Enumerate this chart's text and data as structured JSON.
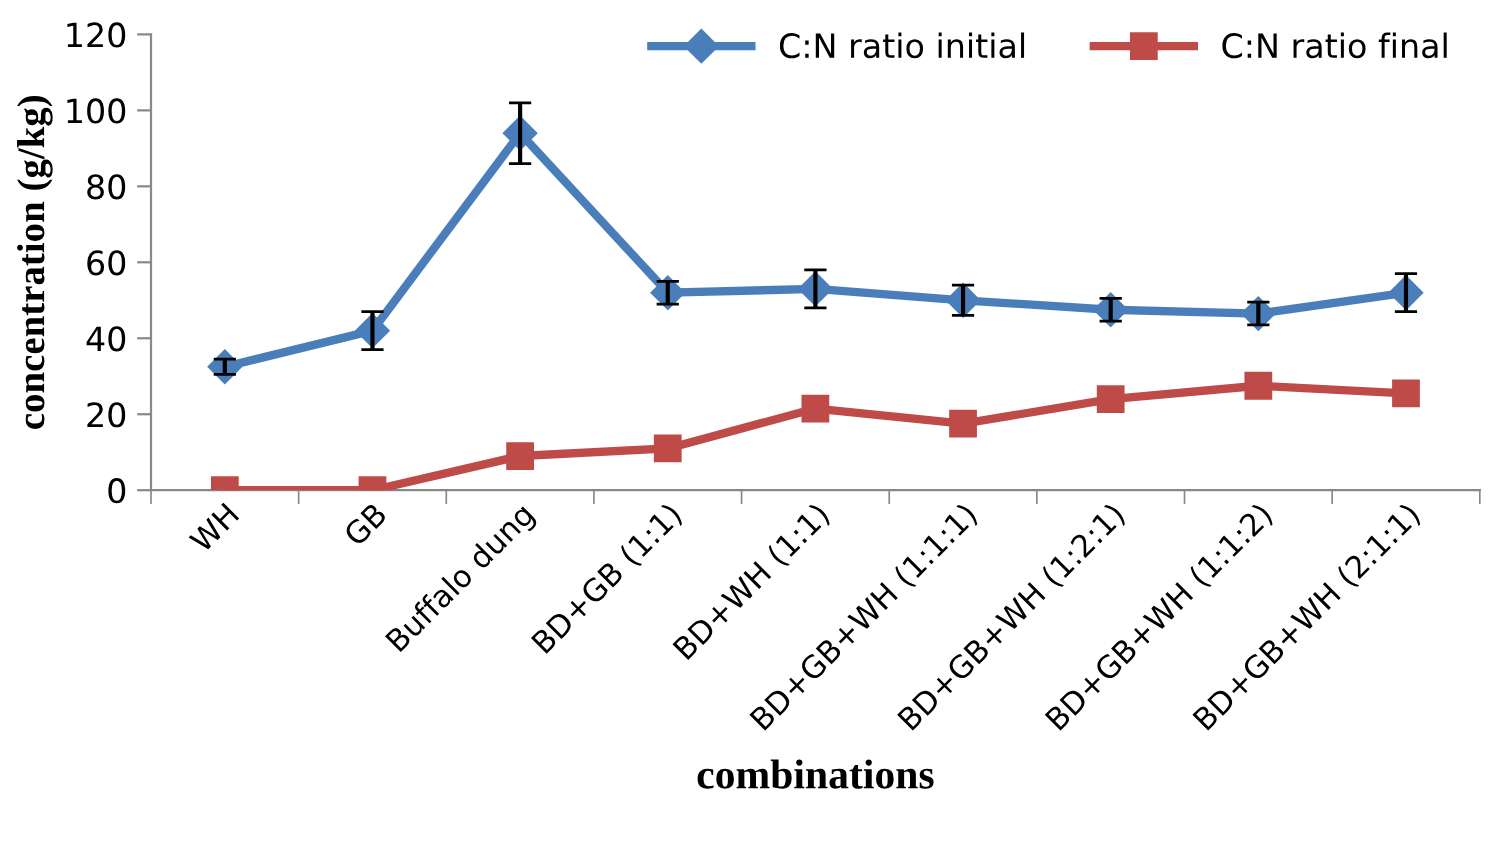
{
  "chart_data": {
    "type": "line",
    "xlabel": "combinations",
    "ylabel": "concentration (g/kg)",
    "categories": [
      "WH",
      "GB",
      "Buffalo dung",
      "BD+GB (1:1)",
      "BD+WH (1:1)",
      "BD+GB+WH (1:1:1)",
      "BD+GB+WH (1:2:1)",
      "BD+GB+WH (1:1:2)",
      "BD+GB+WH (2:1:1)"
    ],
    "series": [
      {
        "name": "C:N ratio initial",
        "color": "#4a7ebb",
        "marker": "diamond",
        "values": [
          32.5,
          42,
          94,
          52,
          53,
          50,
          47.5,
          46.5,
          52
        ],
        "errors": [
          2,
          5,
          8,
          3,
          5,
          4,
          3,
          3,
          5
        ]
      },
      {
        "name": "C:N ratio final",
        "color": "#be4b48",
        "marker": "square",
        "values": [
          0,
          0,
          9,
          11,
          21.5,
          17.5,
          24,
          27.5,
          25.5
        ]
      }
    ],
    "ylim": [
      0,
      120
    ],
    "yticks": [
      0,
      20,
      40,
      60,
      80,
      100,
      120
    ],
    "grid": false,
    "legend": "top right"
  }
}
